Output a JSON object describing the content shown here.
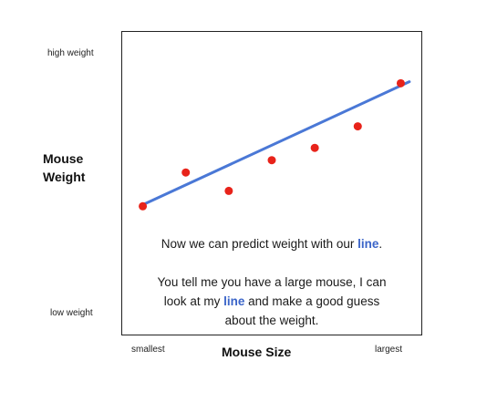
{
  "chart_data": {
    "type": "scatter",
    "x": [
      1,
      2,
      3,
      4,
      5,
      6,
      7
    ],
    "y": [
      1.0,
      2.1,
      1.5,
      2.5,
      2.9,
      3.6,
      5.0
    ],
    "xlim": [
      0.5,
      7.5
    ],
    "ylim": [
      -3.2,
      6.7
    ],
    "trendline": {
      "x": [
        1,
        7.2
      ],
      "y": [
        1.05,
        5.05
      ]
    },
    "colors": {
      "points": "#e8231a",
      "line": "#4a78d6",
      "highlight": "#3a64c8"
    },
    "xlabel": "Mouse Size",
    "ylabel_line1": "Mouse",
    "ylabel_line2": "Weight",
    "x_ticks": {
      "min_label": "smallest",
      "max_label": "largest"
    },
    "y_ticks": {
      "max_label": "high weight",
      "min_label": "low weight"
    },
    "grid": false,
    "legend": "none",
    "annotation": {
      "line1": {
        "before": "Now we can predict weight with our ",
        "highlight": "line",
        "after": "."
      },
      "line2": "You tell me you have a large mouse, I can",
      "line3": {
        "before": "look at my ",
        "highlight": "line",
        "after": " and make a good guess"
      },
      "line4": "about the weight."
    }
  }
}
